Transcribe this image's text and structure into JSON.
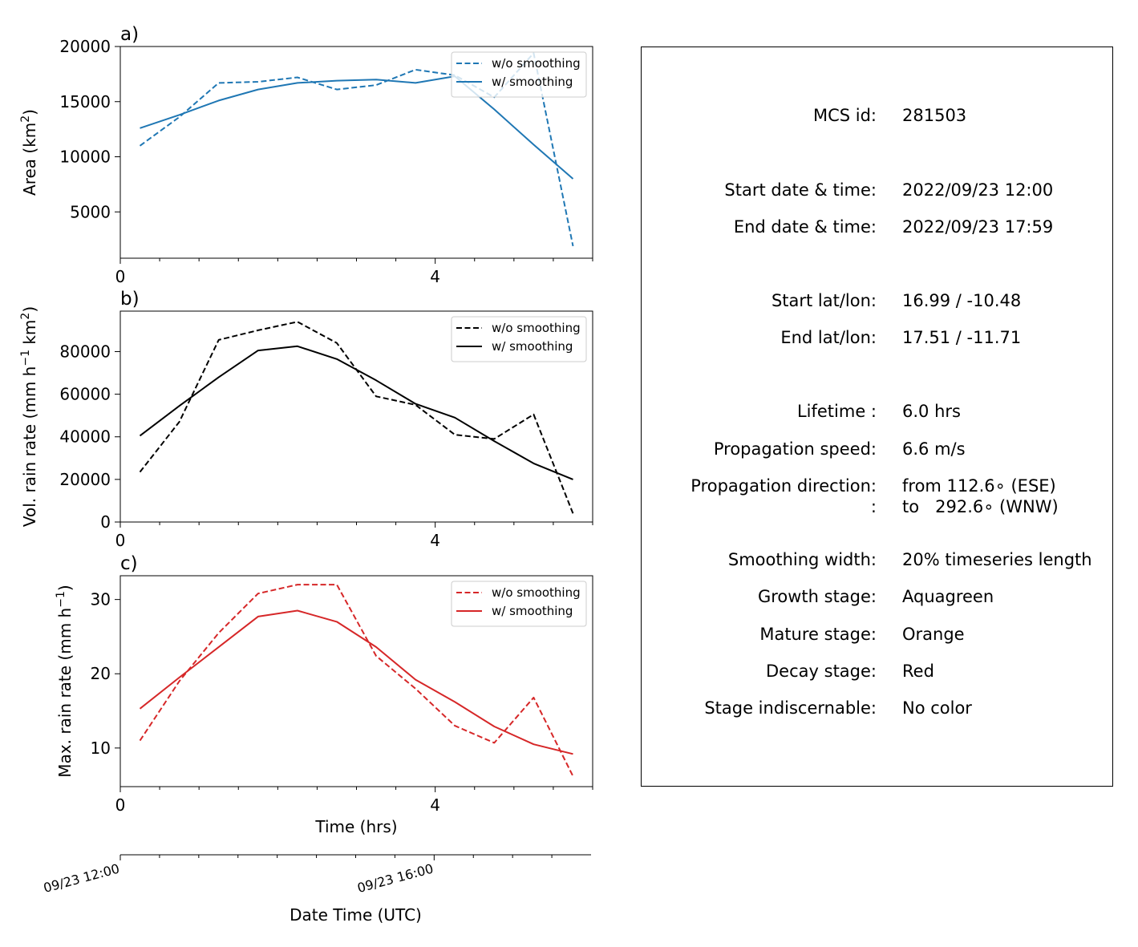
{
  "chart_data": [
    {
      "type": "line",
      "panel_label": "a)",
      "ylabel": "Area  (km$^2$)",
      "ylabel_parts": [
        "Area  (km",
        "2",
        ")"
      ],
      "xlim": [
        0,
        6
      ],
      "ylim": [
        800,
        20000
      ],
      "xticks": [
        0,
        4
      ],
      "yticks": [
        5000,
        10000,
        15000,
        20000
      ],
      "x": [
        0.25,
        0.75,
        1.25,
        1.75,
        2.25,
        2.75,
        3.25,
        3.75,
        4.25,
        4.75,
        5.25,
        5.75
      ],
      "series": [
        {
          "name": "w/o smoothing",
          "color": "#1f77b4",
          "dash": true,
          "values": [
            11000,
            13600,
            16700,
            16800,
            17200,
            16100,
            16500,
            17900,
            17400,
            15400,
            19400,
            1900
          ]
        },
        {
          "name": "w/ smoothing",
          "color": "#1f77b4",
          "dash": false,
          "values": [
            12600,
            13800,
            15100,
            16100,
            16700,
            16900,
            17000,
            16700,
            17300,
            14300,
            11100,
            8000
          ]
        }
      ],
      "legend": "upper right",
      "grid": false
    },
    {
      "type": "line",
      "panel_label": "b)",
      "ylabel_parts": [
        "Vol. rain rate (mm h",
        "−1",
        " km",
        "2",
        ")"
      ],
      "xlim": [
        0,
        6
      ],
      "ylim": [
        0,
        99000
      ],
      "xticks": [
        0,
        4
      ],
      "yticks": [
        0,
        20000,
        40000,
        60000,
        80000
      ],
      "x": [
        0.25,
        0.75,
        1.25,
        1.75,
        2.25,
        2.75,
        3.25,
        3.75,
        4.25,
        4.75,
        5.25,
        5.75
      ],
      "series": [
        {
          "name": "w/o smoothing",
          "color": "#000000",
          "dash": true,
          "values": [
            23500,
            47000,
            85500,
            90000,
            94000,
            84000,
            59000,
            55000,
            41000,
            39000,
            50500,
            4000
          ]
        },
        {
          "name": "w/ smoothing",
          "color": "#000000",
          "dash": false,
          "values": [
            40500,
            54500,
            68000,
            80500,
            82500,
            76500,
            66500,
            55500,
            49000,
            38000,
            27500,
            20000
          ]
        }
      ],
      "legend": "upper right",
      "grid": false
    },
    {
      "type": "line",
      "panel_label": "c)",
      "ylabel_parts": [
        "Max. rain rate  (mm h",
        "−1",
        ")"
      ],
      "xlim": [
        0,
        6
      ],
      "ylim": [
        4.8,
        33.2
      ],
      "xticks": [
        0,
        4
      ],
      "yticks": [
        10,
        20,
        30
      ],
      "xlabel": "Time (hrs)",
      "x": [
        0.25,
        0.75,
        1.25,
        1.75,
        2.25,
        2.75,
        3.25,
        3.75,
        4.25,
        4.75,
        5.25,
        5.75
      ],
      "series": [
        {
          "name": "w/o smoothing",
          "color": "#d62728",
          "dash": true,
          "values": [
            11,
            19,
            25.5,
            30.8,
            32,
            32,
            22.4,
            18,
            13,
            10.7,
            16.8,
            6.2
          ]
        },
        {
          "name": "w/ smoothing",
          "color": "#d62728",
          "dash": false,
          "values": [
            15.3,
            19.5,
            23.6,
            27.7,
            28.5,
            27,
            23.6,
            19.2,
            16.2,
            12.9,
            10.5,
            9.2
          ]
        }
      ],
      "legend": "upper right",
      "grid": false
    }
  ],
  "date_axis": {
    "tick_labels": [
      "09/23 12:00",
      "09/23 16:00"
    ],
    "label": "Date Time (UTC)",
    "start": "09/23 12:00",
    "end": "09/23 17:59"
  },
  "info": {
    "rows": [
      {
        "label": "MCS id:",
        "value": "281503"
      },
      {
        "label": "Start date & time:",
        "value": "2022/09/23 12:00"
      },
      {
        "label": "End date & time:",
        "value": "2022/09/23 17:59"
      },
      {
        "label": "Start lat/lon:",
        "value": "16.99 / -10.48"
      },
      {
        "label": "End lat/lon:",
        "value": "17.51 / -11.71"
      },
      {
        "label": "Lifetime :",
        "value": "6.0 hrs"
      },
      {
        "label": "Propagation speed:",
        "value": "6.6 m/s"
      },
      {
        "label": "Propagation direction:",
        "value": "from 112.6∘ (ESE)"
      },
      {
        "label": ":",
        "value": "to   292.6∘ (WNW)"
      },
      {
        "label": "Smoothing width:",
        "value": "20% timeseries length"
      },
      {
        "label": "Growth stage:",
        "value": "Aquagreen"
      },
      {
        "label": "Mature stage:",
        "value": "Orange"
      },
      {
        "label": "Decay stage:",
        "value": "Red"
      },
      {
        "label": "Stage indiscernable:",
        "value": "No color"
      }
    ]
  }
}
